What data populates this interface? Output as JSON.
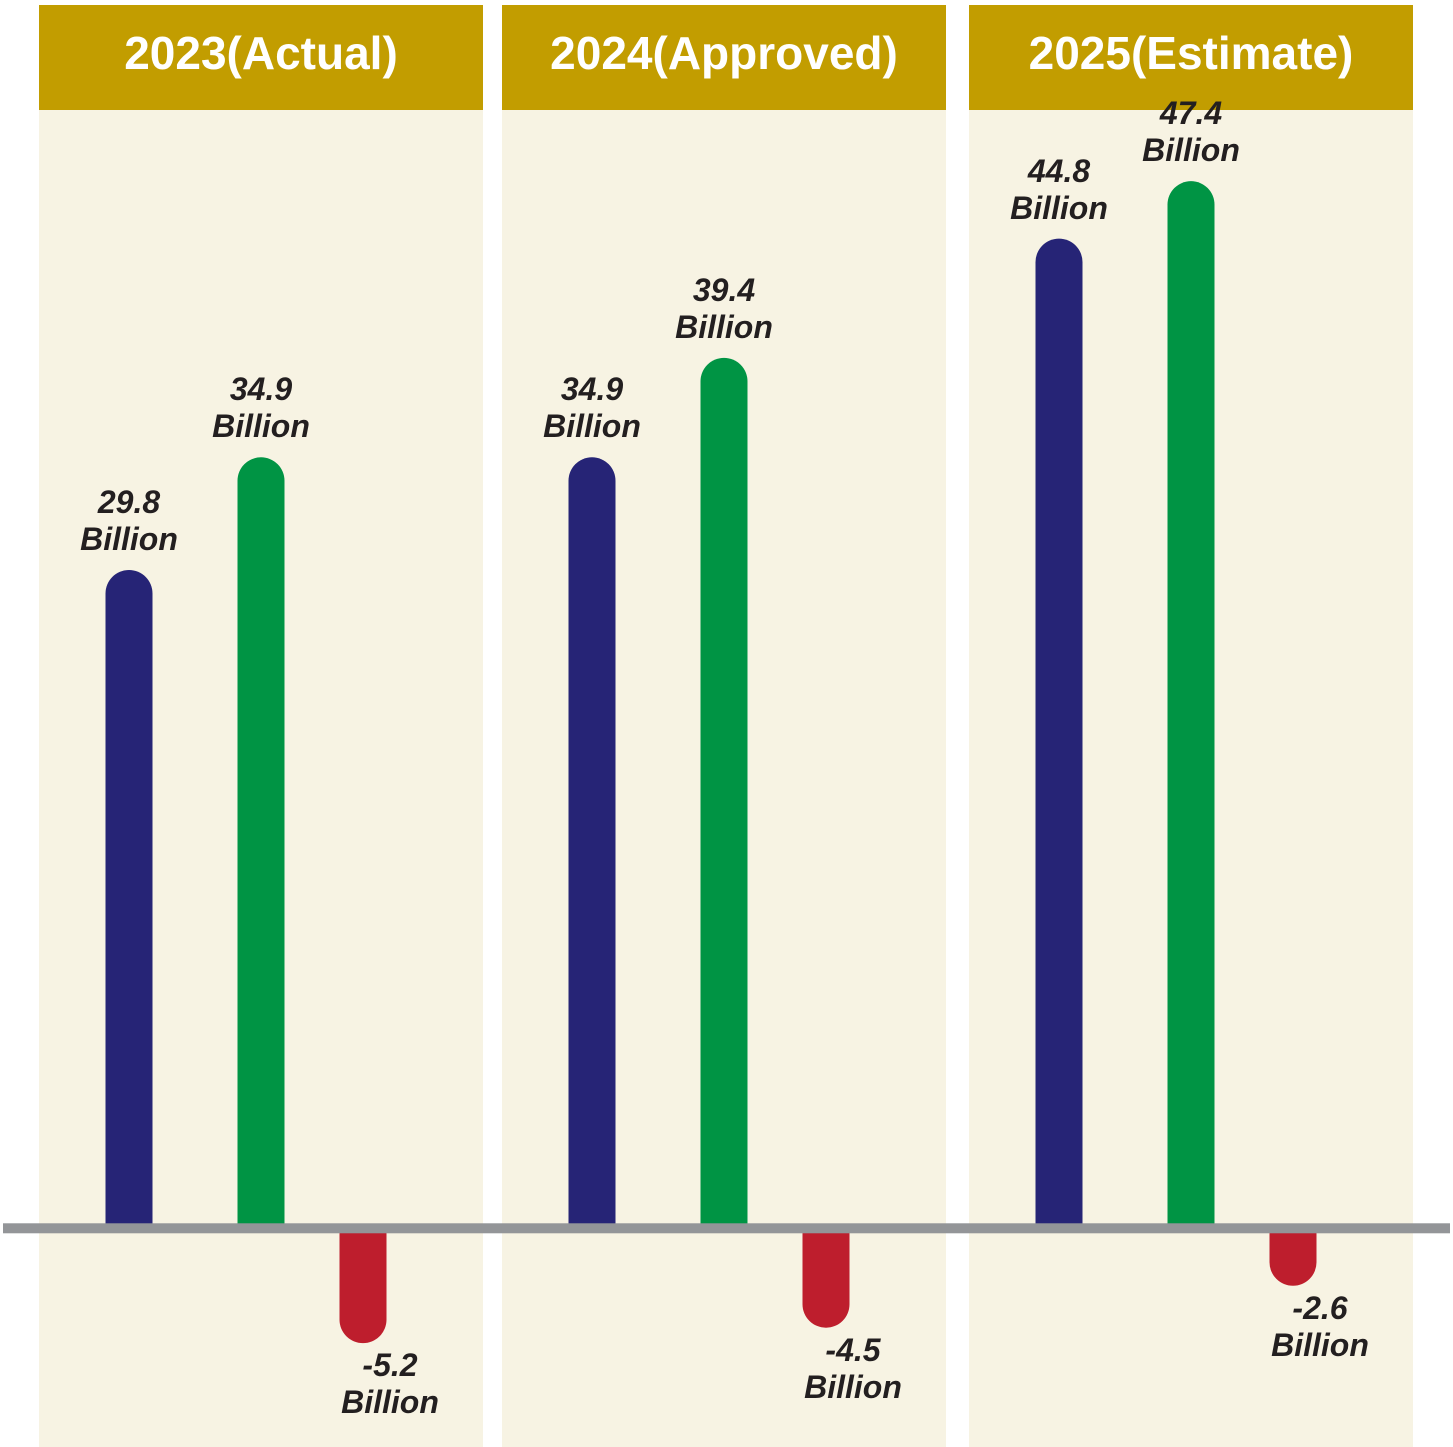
{
  "chart_data": {
    "type": "bar",
    "categories": [
      "2023(Actual)",
      "2024(Approved)",
      "2025(Estimate)"
    ],
    "series": [
      {
        "color": "#262476",
        "values": [
          29.8,
          34.9,
          44.8
        ],
        "value_labels": [
          "29.8\nBillion",
          "34.9\nBillion",
          "44.8\nBillion"
        ]
      },
      {
        "color": "#009444",
        "values": [
          34.9,
          39.4,
          47.4
        ],
        "value_labels": [
          "34.9\nBillion",
          "39.4\nBillion",
          "47.4\nBillion"
        ]
      },
      {
        "color": "#be1e2d",
        "values": [
          -5.2,
          -4.5,
          -2.6
        ],
        "value_labels": [
          "-5.2\nBillion",
          "-4.5\nBillion",
          "-2.6\nBillion"
        ]
      }
    ],
    "ylim": [
      -9.9,
      55.6
    ]
  }
}
